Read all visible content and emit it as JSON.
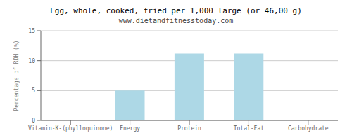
{
  "chart_data": {
    "type": "bar",
    "title": "Egg, whole, cooked, fried per 1,000 large (or 46,00 g)",
    "subtitle": "www.dietandfitnesstoday.com",
    "categories": [
      "Vitamin-K-(phylloquinone)",
      "Energy",
      "Protein",
      "Total-Fat",
      "Carbohydrate"
    ],
    "values": [
      0,
      5.0,
      11.2,
      11.2,
      0
    ],
    "color": "#add8e6",
    "ylabel": "Percentage of RDH (%)",
    "ylim": [
      0,
      15
    ],
    "yticks": [
      0,
      5,
      10,
      15
    ],
    "grid": true
  }
}
